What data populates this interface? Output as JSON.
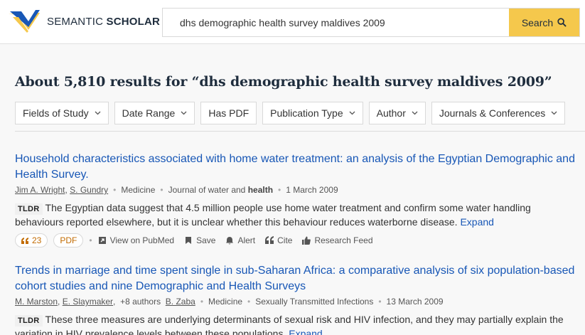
{
  "header": {
    "logo_prefix": "SEMANTIC",
    "logo_suffix": "SCHOLAR",
    "search_value": "dhs demographic health survey maldives 2009",
    "search_button": "Search"
  },
  "results_heading": "About 5,810 results for “dhs demographic health survey maldives 2009”",
  "filters": [
    "Fields of Study",
    "Date Range",
    "Has PDF",
    "Publication Type",
    "Author",
    "Journals & Conferences"
  ],
  "results": [
    {
      "title": "Household characteristics associated with home water treatment: an analysis of the Egyptian Demographic and Health Survey.",
      "authors": [
        "Jim A. Wright",
        "S. Gundry"
      ],
      "field": "Medicine",
      "venue_prefix": "Journal of water and ",
      "venue_bold": "health",
      "date": "1 March 2009",
      "tldr_label": "TLDR",
      "tldr": "The Egyptian data suggest that 4.5 million people use home water treatment and confirm some water handling behaviours reported elsewhere, but it is unclear whether this behaviour reduces waterborne disease.",
      "expand": "Expand",
      "citations": "23",
      "pdf": "PDF",
      "view_link": "View on PubMed",
      "save": "Save",
      "alert": "Alert",
      "cite": "Cite",
      "feed": "Research Feed"
    },
    {
      "title": "Trends in marriage and time spent single in sub-Saharan Africa: a comparative analysis of six population-based cohort studies and nine Demographic and Health Surveys",
      "authors": [
        "M. Marston",
        "E. Slaymaker"
      ],
      "more_authors": "+8 authors",
      "last_author": "B. Zaba",
      "field": "Medicine",
      "venue": "Sexually Transmitted Infections",
      "date": "13 March 2009",
      "tldr_label": "TLDR",
      "tldr": "These three measures are underlying determinants of sexual risk and HIV infection, and they may partially explain the variation in HIV prevalence levels between these populations.",
      "expand": "Expand"
    }
  ],
  "colors": {
    "link": "#1857b6",
    "search_button": "#f5c84c",
    "citation": "#c26b00"
  }
}
